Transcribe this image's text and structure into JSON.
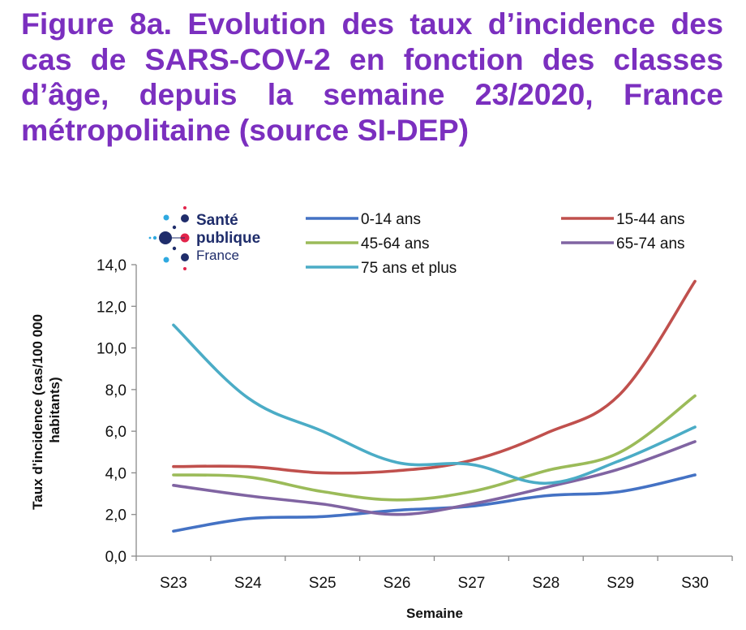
{
  "title": "Figure 8a. Evolution des taux d’incidence des cas de SARS-COV-2 en fonction des classes d’âge, depuis la semaine 23/2020, France métropolitaine (source SI-DEP)",
  "logo": {
    "line1": "Santé",
    "line2": "publique",
    "line3": "France"
  },
  "chart_data": {
    "type": "line",
    "categories": [
      "S23",
      "S24",
      "S25",
      "S26",
      "S27",
      "S28",
      "S29",
      "S30"
    ],
    "xlabel": "Semaine",
    "ylabel": "Taux d'incidence (cas/100 000 habitants)",
    "ylabel_lines": [
      "Taux d'incidence (cas/100 000",
      "habitants)"
    ],
    "ylim": [
      0,
      14
    ],
    "yticks": [
      "0,0",
      "2,0",
      "4,0",
      "6,0",
      "8,0",
      "10,0",
      "12,0",
      "14,0"
    ],
    "grid": false,
    "legend_position": "top",
    "series": [
      {
        "name": "0-14 ans",
        "color": "#4472c4",
        "values": [
          1.2,
          1.8,
          1.9,
          2.2,
          2.4,
          2.9,
          3.1,
          3.9
        ]
      },
      {
        "name": "15-44 ans",
        "color": "#c0504d",
        "values": [
          4.3,
          4.3,
          4.0,
          4.1,
          4.6,
          5.9,
          7.8,
          13.2
        ]
      },
      {
        "name": "45-64 ans",
        "color": "#9bbb59",
        "values": [
          3.9,
          3.8,
          3.1,
          2.7,
          3.1,
          4.1,
          5.0,
          7.7
        ]
      },
      {
        "name": "65-74 ans",
        "color": "#8064a2",
        "values": [
          3.4,
          2.9,
          2.5,
          2.0,
          2.5,
          3.3,
          4.2,
          5.5
        ]
      },
      {
        "name": "75 ans et plus",
        "color": "#4bacc6",
        "values": [
          11.1,
          7.6,
          6.0,
          4.5,
          4.4,
          3.5,
          4.6,
          6.2
        ]
      }
    ]
  }
}
